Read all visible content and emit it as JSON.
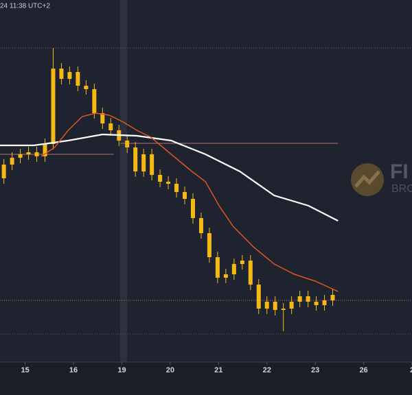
{
  "chart_data": {
    "type": "candlestick",
    "header_text": "24 11:38 UTC+2",
    "watermark": {
      "main": "FI",
      "sub": "BRO"
    },
    "color": "#f5b915",
    "xlim": [
      0.48,
      9.0
    ],
    "xticks": [
      {
        "value": 1,
        "label": "15"
      },
      {
        "value": 2,
        "label": "16"
      },
      {
        "value": 3,
        "label": "19"
      },
      {
        "value": 4,
        "label": "20"
      },
      {
        "value": 5,
        "label": "21"
      },
      {
        "value": 6,
        "label": "22"
      },
      {
        "value": 7,
        "label": "23"
      },
      {
        "value": 8,
        "label": "26"
      },
      {
        "value": 9,
        "label": "2"
      }
    ],
    "ylim": [
      0,
      528
    ],
    "x": [
      0.56,
      0.73,
      0.9,
      1.07,
      1.24,
      1.41,
      1.58,
      1.75,
      1.92,
      2.09,
      2.26,
      2.43,
      2.6,
      2.77,
      2.94,
      3.11,
      3.28,
      3.45,
      3.62,
      3.79,
      3.96,
      4.13,
      4.3,
      4.47,
      4.64,
      4.81,
      4.98,
      5.15,
      5.32,
      5.49,
      5.66,
      5.83,
      6.0,
      6.17,
      6.34,
      6.51,
      6.68,
      6.85,
      7.02,
      7.19,
      7.36
    ],
    "open": [
      268,
      288,
      298,
      303,
      306,
      300,
      318,
      428,
      413,
      423,
      403,
      398,
      363,
      348,
      338,
      323,
      313,
      278,
      303,
      273,
      263,
      260,
      248,
      238,
      210,
      188,
      153,
      123,
      128,
      143,
      148,
      113,
      78,
      88,
      76,
      78,
      88,
      96,
      88,
      83,
      90
    ],
    "high": [
      296,
      306,
      311,
      314,
      314,
      326,
      458,
      436,
      431,
      431,
      411,
      406,
      371,
      356,
      346,
      331,
      321,
      311,
      311,
      281,
      271,
      268,
      256,
      246,
      218,
      196,
      161,
      136,
      151,
      156,
      156,
      121,
      96,
      96,
      86,
      96,
      104,
      104,
      96,
      98,
      106
    ],
    "low": [
      260,
      280,
      290,
      295,
      292,
      292,
      310,
      405,
      405,
      395,
      390,
      355,
      340,
      330,
      315,
      305,
      270,
      270,
      265,
      255,
      252,
      240,
      230,
      202,
      180,
      145,
      115,
      115,
      120,
      135,
      105,
      70,
      70,
      68,
      45,
      70,
      80,
      80,
      75,
      75,
      82
    ],
    "close": [
      288,
      298,
      303,
      306,
      300,
      318,
      428,
      413,
      423,
      403,
      398,
      363,
      348,
      338,
      323,
      313,
      278,
      303,
      273,
      263,
      260,
      248,
      238,
      210,
      188,
      153,
      123,
      128,
      143,
      148,
      113,
      78,
      88,
      76,
      78,
      88,
      96,
      88,
      83,
      90,
      98
    ],
    "lines": [
      {
        "color": "#ffffff",
        "x": [
          0.48,
          1.18,
          1.89,
          2.6,
          3.31,
          4.02,
          4.73,
          5.44,
          6.15,
          6.86,
          7.47
        ],
        "values": [
          316,
          316,
          323,
          332,
          330,
          323,
          303,
          278,
          243,
          228,
          206
        ]
      },
      {
        "color": "#e0561f",
        "x": [
          1.33,
          1.61,
          1.89,
          2.18,
          2.46,
          2.74,
          3.03,
          3.31,
          3.6,
          4.02,
          4.45,
          4.73,
          5.01,
          5.3,
          5.72,
          6.15,
          6.57,
          7.0,
          7.47
        ],
        "values": [
          300,
          313,
          338,
          358,
          363,
          360,
          350,
          338,
          328,
          303,
          278,
          263,
          228,
          198,
          168,
          143,
          128,
          118,
          103
        ]
      }
    ],
    "levels": [
      {
        "value": 458,
        "color": "#8a5a3c",
        "x": [
          0.48,
          9.0
        ],
        "dash": true
      },
      {
        "value": 90,
        "color": "#c07a3a",
        "x": [
          0.48,
          9.0
        ],
        "dash": true
      },
      {
        "value": 41,
        "color": "#555a66",
        "x": [
          0.48,
          9.0
        ],
        "dash": true
      },
      {
        "value": 319,
        "color": "#b07878",
        "x": [
          2.97,
          7.47
        ],
        "dash": false
      },
      {
        "value": 303,
        "color": "#b07878",
        "x": [
          0.48,
          2.83
        ],
        "dash": false
      }
    ]
  }
}
